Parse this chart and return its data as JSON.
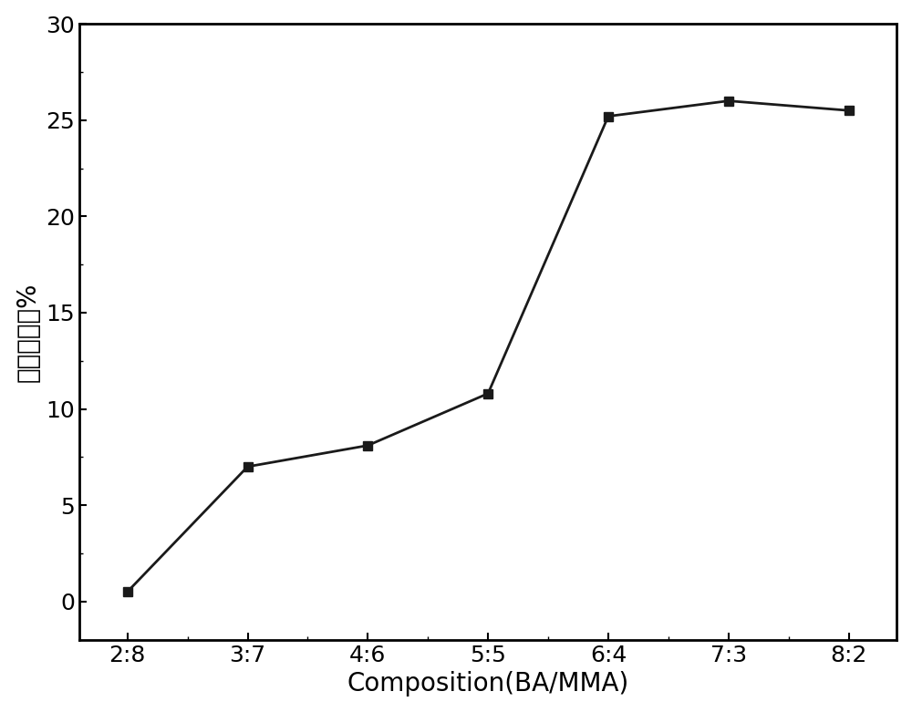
{
  "x_labels": [
    "2:8",
    "3:7",
    "4:6",
    "5:5",
    "6:4",
    "7:3",
    "8:2"
  ],
  "y_values": [
    0.5,
    7.0,
    8.1,
    10.8,
    25.2,
    26.0,
    25.5
  ],
  "xlabel": "Composition(BA/MMA)",
  "ylabel": "最大伸长率%",
  "ylim": [
    -2,
    30
  ],
  "yticks": [
    0,
    5,
    10,
    15,
    20,
    25,
    30
  ],
  "line_color": "#1a1a1a",
  "marker": "s",
  "marker_size": 7,
  "linewidth": 2.0,
  "background_color": "#ffffff",
  "xlabel_fontsize": 20,
  "ylabel_fontsize": 20,
  "tick_fontsize": 18
}
